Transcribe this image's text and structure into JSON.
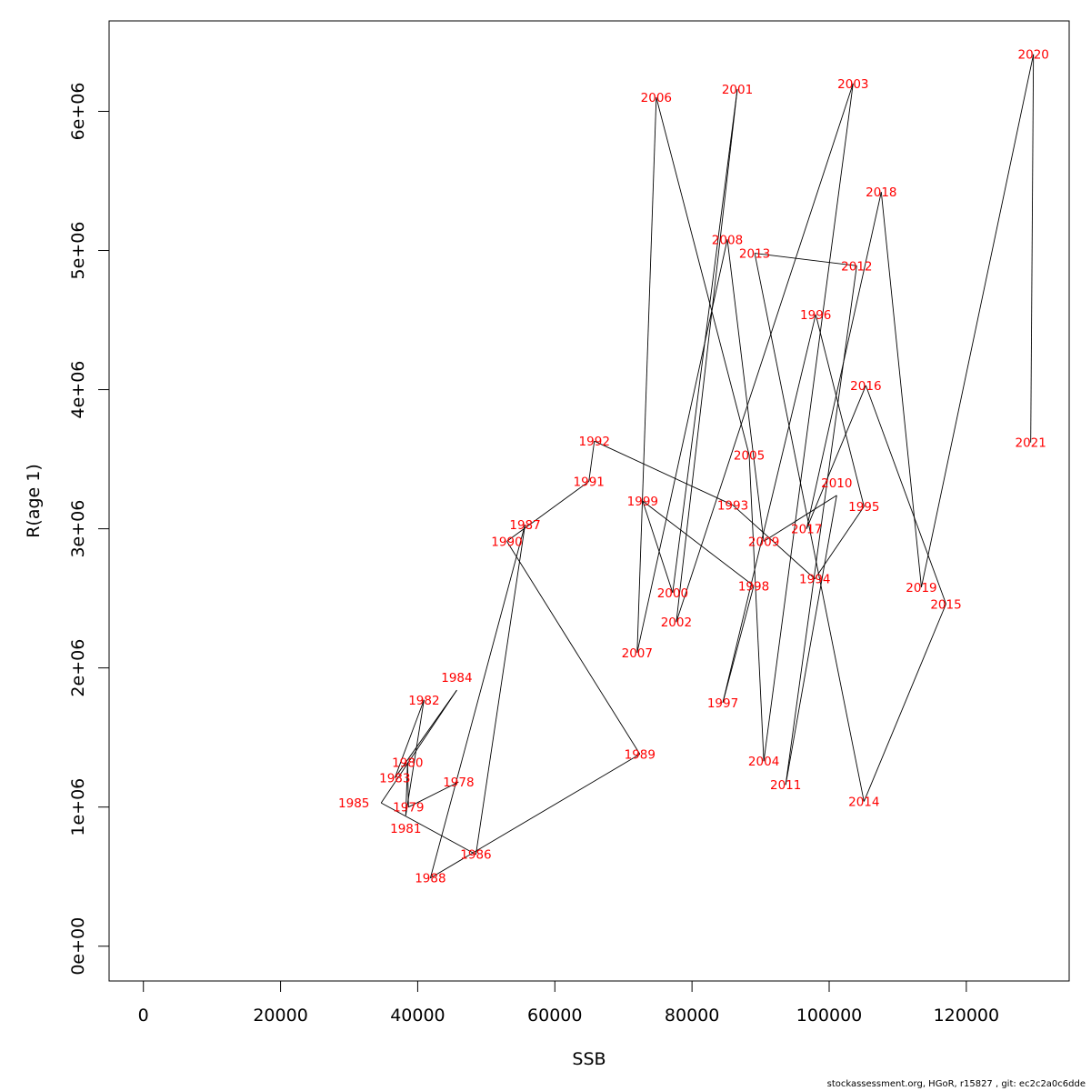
{
  "chart_data": {
    "type": "line",
    "title": "",
    "xlabel": "SSB",
    "ylabel": "R(age 1)",
    "xlim": [
      -5000,
      135000
    ],
    "ylim": [
      -250000,
      6650000
    ],
    "x_ticks": [
      0,
      20000,
      40000,
      60000,
      80000,
      100000,
      120000
    ],
    "x_tick_labels": [
      "0",
      "20000",
      "40000",
      "60000",
      "80000",
      "100000",
      "120000"
    ],
    "y_ticks": [
      0,
      1000000,
      2000000,
      3000000,
      4000000,
      5000000,
      6000000
    ],
    "y_tick_labels": [
      "0e+00",
      "1e+06",
      "2e+06",
      "3e+06",
      "4e+06",
      "5e+06",
      "6e+06"
    ],
    "grid": false,
    "line_color": "#000000",
    "label_color": "#ff0000",
    "points": [
      {
        "year": "1978",
        "ssb": 45960,
        "r": 1180000
      },
      {
        "year": "1979",
        "ssb": 38660,
        "r": 1000000
      },
      {
        "year": "1980",
        "ssb": 38520,
        "r": 1320000
      },
      {
        "year": "1981",
        "ssb": 38260,
        "r": 940000
      },
      {
        "year": "1982",
        "ssb": 40920,
        "r": 1770000
      },
      {
        "year": "1983",
        "ssb": 36670,
        "r": 1210000
      },
      {
        "year": "1984",
        "ssb": 45700,
        "r": 1840000
      },
      {
        "year": "1985",
        "ssb": 34670,
        "r": 1030000
      },
      {
        "year": "1986",
        "ssb": 48490,
        "r": 660000
      },
      {
        "year": "1987",
        "ssb": 55660,
        "r": 3030000
      },
      {
        "year": "1988",
        "ssb": 41850,
        "r": 490000
      },
      {
        "year": "1989",
        "ssb": 72400,
        "r": 1380000
      },
      {
        "year": "1990",
        "ssb": 53000,
        "r": 2910000
      },
      {
        "year": "1991",
        "ssb": 64960,
        "r": 3340000
      },
      {
        "year": "1992",
        "ssb": 65760,
        "r": 3630000
      },
      {
        "year": "1993",
        "ssb": 85950,
        "r": 3170000
      },
      {
        "year": "1994",
        "ssb": 97910,
        "r": 2640000
      },
      {
        "year": "1995",
        "ssb": 105080,
        "r": 3160000
      },
      {
        "year": "1996",
        "ssb": 98040,
        "r": 4540000
      },
      {
        "year": "1997",
        "ssb": 84490,
        "r": 1750000
      },
      {
        "year": "1998",
        "ssb": 89000,
        "r": 2590000
      },
      {
        "year": "1999",
        "ssb": 72800,
        "r": 3200000
      },
      {
        "year": "2000",
        "ssb": 77180,
        "r": 2540000
      },
      {
        "year": "2001",
        "ssb": 86610,
        "r": 6160000
      },
      {
        "year": "2002",
        "ssb": 77710,
        "r": 2330000
      },
      {
        "year": "2003",
        "ssb": 103490,
        "r": 6200000
      },
      {
        "year": "2004",
        "ssb": 90470,
        "r": 1330000
      },
      {
        "year": "2005",
        "ssb": 88340,
        "r": 3530000
      },
      {
        "year": "2006",
        "ssb": 74790,
        "r": 6100000
      },
      {
        "year": "2007",
        "ssb": 72000,
        "r": 2110000
      },
      {
        "year": "2008",
        "ssb": 85150,
        "r": 5080000
      },
      {
        "year": "2009",
        "ssb": 90470,
        "r": 2910000
      },
      {
        "year": "2010",
        "ssb": 101100,
        "r": 3240000
      },
      {
        "year": "2011",
        "ssb": 93660,
        "r": 1160000
      },
      {
        "year": "2012",
        "ssb": 104020,
        "r": 4890000
      },
      {
        "year": "2013",
        "ssb": 89140,
        "r": 4980000
      },
      {
        "year": "2014",
        "ssb": 105080,
        "r": 1040000
      },
      {
        "year": "2015",
        "ssb": 117040,
        "r": 2460000
      },
      {
        "year": "2016",
        "ssb": 105350,
        "r": 4030000
      },
      {
        "year": "2017",
        "ssb": 96710,
        "r": 3000000
      },
      {
        "year": "2018",
        "ssb": 107600,
        "r": 5420000
      },
      {
        "year": "2019",
        "ssb": 113450,
        "r": 2580000
      },
      {
        "year": "2020",
        "ssb": 129790,
        "r": 6410000
      },
      {
        "year": "2021",
        "ssb": 129390,
        "r": 3620000
      }
    ]
  },
  "footer": "stockassessment.org, HGoR, r15827 , git: ec2c2a0c6dde"
}
